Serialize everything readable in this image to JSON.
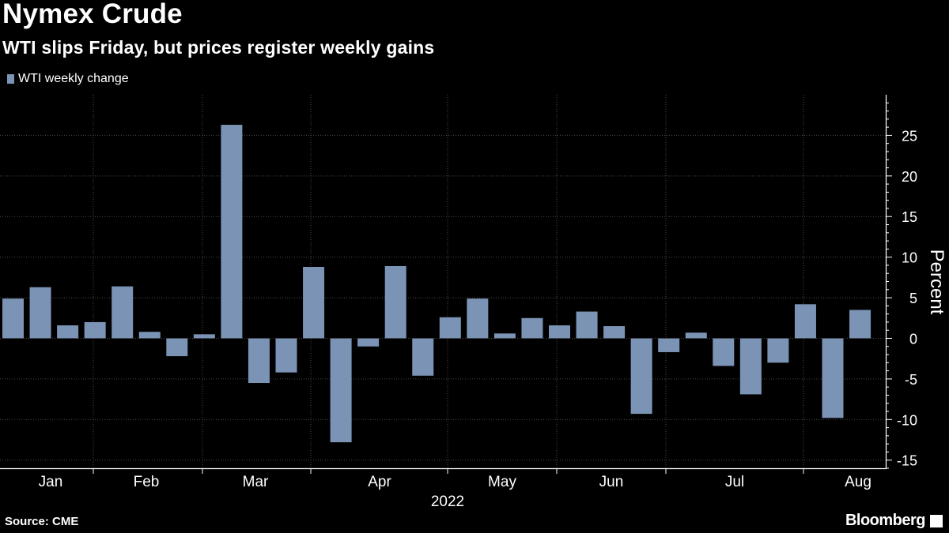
{
  "header": {
    "title": "Nymex Crude",
    "subtitle": "WTI slips Friday, but prices register weekly gains"
  },
  "legend": {
    "label": "WTI weekly change",
    "color": "#7b93b5"
  },
  "footer": {
    "source": "Source: CME",
    "brand": "Bloomberg"
  },
  "colors": {
    "bar": "#7b93b5",
    "background": "#000000",
    "grid": "#4a4a4a",
    "axis": "#ffffff"
  },
  "chart_data": {
    "type": "bar",
    "title": "Nymex Crude",
    "subtitle": "WTI slips Friday, but prices register weekly gains",
    "ylabel": "Percent",
    "xlabel": "2022",
    "ylim": [
      -16,
      30
    ],
    "yticks": [
      25,
      20,
      15,
      10,
      5,
      0,
      -5,
      -10,
      -15
    ],
    "month_labels": [
      "Jan",
      "Feb",
      "Mar",
      "Apr",
      "May",
      "Jun",
      "Jul",
      "Aug"
    ],
    "year_label": "2022",
    "series": [
      {
        "name": "WTI weekly change",
        "values": [
          4.9,
          6.3,
          1.6,
          2.0,
          6.4,
          0.8,
          -2.2,
          0.5,
          26.3,
          -5.5,
          -4.2,
          8.8,
          -12.8,
          -1.0,
          8.9,
          -4.6,
          2.6,
          4.9,
          0.6,
          2.5,
          1.6,
          3.3,
          1.5,
          -9.3,
          -1.7,
          0.7,
          -3.4,
          -6.9,
          -3.0,
          4.2,
          -9.8,
          3.5
        ]
      }
    ]
  }
}
